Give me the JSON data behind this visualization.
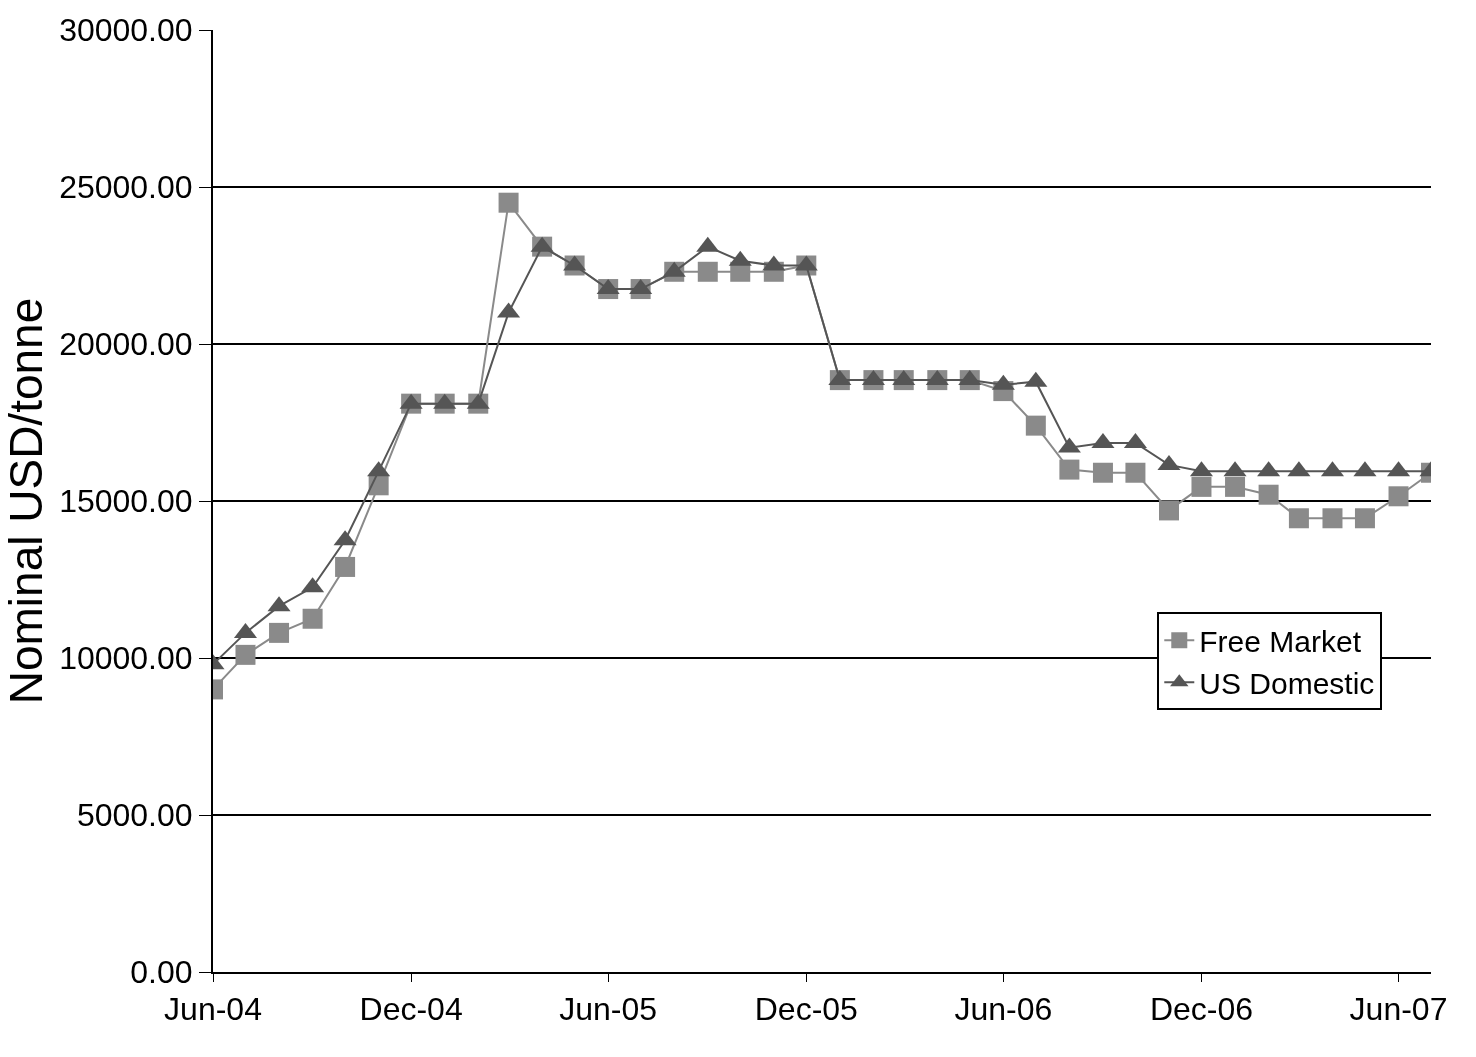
{
  "chart_data": {
    "type": "line",
    "ylabel": "Nominal USD/tonne",
    "x": [
      "2004-06",
      "2004-07",
      "2004-08",
      "2004-09",
      "2004-10",
      "2004-11",
      "2004-12",
      "2005-01",
      "2005-02",
      "2005-03",
      "2005-04",
      "2005-05",
      "2005-06",
      "2005-07",
      "2005-08",
      "2005-09",
      "2005-10",
      "2005-11",
      "2005-12",
      "2006-01",
      "2006-02",
      "2006-03",
      "2006-04",
      "2006-05",
      "2006-06",
      "2006-07",
      "2006-08",
      "2006-09",
      "2006-10",
      "2006-11",
      "2006-12",
      "2007-01",
      "2007-02",
      "2007-03",
      "2007-04",
      "2007-05",
      "2007-06",
      "2007-07"
    ],
    "series": [
      {
        "name": "Free Market",
        "color": "#8a8a8a",
        "marker": "square",
        "values": [
          9000,
          10100,
          10800,
          11250,
          12900,
          15500,
          18100,
          18100,
          18100,
          24500,
          23100,
          22500,
          21750,
          21750,
          22300,
          22300,
          22300,
          22300,
          22500,
          18850,
          18850,
          18850,
          18850,
          18850,
          18500,
          17400,
          16000,
          15900,
          15900,
          14700,
          15450,
          15450,
          15200,
          14450,
          14450,
          14450,
          15150,
          15900
        ]
      },
      {
        "name": "US Domestic",
        "color": "#555555",
        "marker": "triangle",
        "values": [
          9800,
          10800,
          11650,
          12250,
          13750,
          15950,
          18100,
          18100,
          18100,
          21000,
          23100,
          22500,
          21750,
          21750,
          22300,
          23100,
          22650,
          22500,
          22500,
          18850,
          18850,
          18850,
          18850,
          18850,
          18700,
          18800,
          16700,
          16850,
          16850,
          16150,
          15950,
          15950,
          15950,
          15950,
          15950,
          15950,
          15950,
          15950
        ]
      }
    ],
    "xlim": [
      "2004-06",
      "2007-07"
    ],
    "xticks": [
      {
        "value": "2004-06",
        "label": "Jun-04"
      },
      {
        "value": "2004-12",
        "label": "Dec-04"
      },
      {
        "value": "2005-06",
        "label": "Jun-05"
      },
      {
        "value": "2005-12",
        "label": "Dec-05"
      },
      {
        "value": "2006-06",
        "label": "Jun-06"
      },
      {
        "value": "2006-12",
        "label": "Dec-06"
      },
      {
        "value": "2007-06",
        "label": "Jun-07"
      }
    ],
    "ylim": [
      0,
      30000
    ],
    "yticks": [
      {
        "value": 0,
        "label": "0.00"
      },
      {
        "value": 5000,
        "label": "5000.00"
      },
      {
        "value": 10000,
        "label": "10000.00"
      },
      {
        "value": 15000,
        "label": "15000.00"
      },
      {
        "value": 20000,
        "label": "20000.00"
      },
      {
        "value": 25000,
        "label": "25000.00"
      },
      {
        "value": 30000,
        "label": "30000.00"
      }
    ],
    "grid": "y",
    "legend": "right"
  }
}
